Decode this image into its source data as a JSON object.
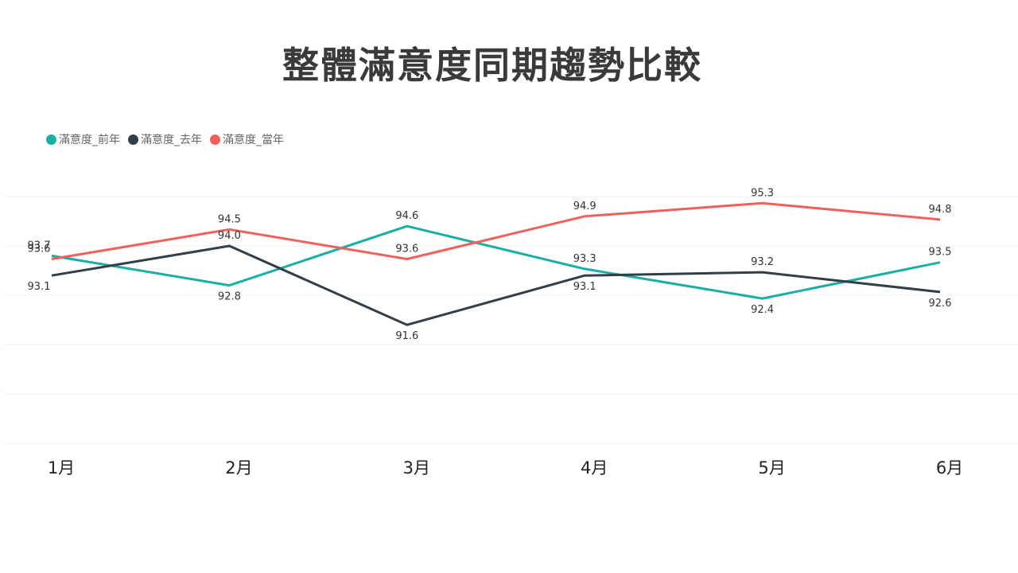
{
  "chart_data": {
    "type": "line",
    "title": "整體滿意度同期趨勢比較",
    "categories": [
      "1月",
      "2月",
      "3月",
      "4月",
      "5月",
      "6月"
    ],
    "series": [
      {
        "name": "滿意度_前年",
        "color": "#1aafa4",
        "values": [
          93.7,
          92.8,
          94.6,
          93.3,
          92.4,
          93.5
        ]
      },
      {
        "name": "滿意度_去年",
        "color": "#333f48",
        "values": [
          93.1,
          94.0,
          91.6,
          93.1,
          93.2,
          92.6
        ]
      },
      {
        "name": "滿意度_當年",
        "color": "#f0605d",
        "values": [
          93.6,
          94.5,
          93.6,
          94.9,
          95.3,
          94.8
        ]
      }
    ],
    "ylim": [
      88,
      95.5
    ],
    "grid": true,
    "legend_position": "top-left",
    "xlabel": "",
    "ylabel": ""
  }
}
